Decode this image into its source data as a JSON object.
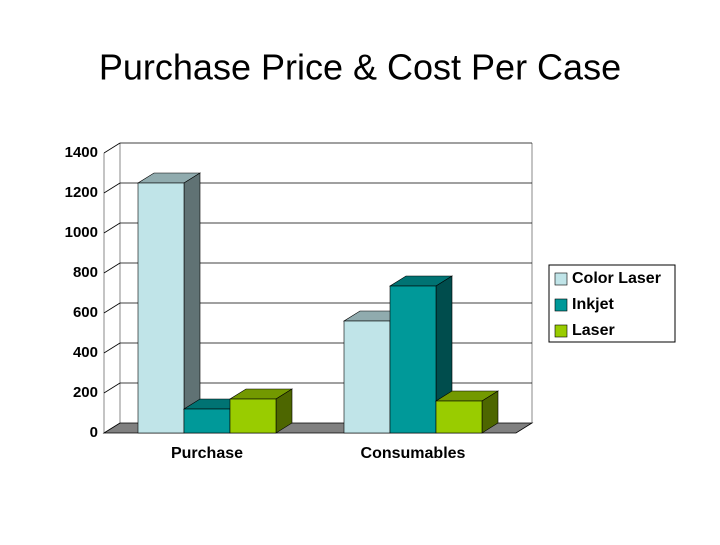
{
  "chart_data": {
    "type": "bar3d",
    "title": "Purchase Price & Cost Per Case",
    "categories": [
      "Purchase",
      "Consumables"
    ],
    "series": [
      {
        "name": "Color Laser",
        "color": "#c0e4e8",
        "values": [
          1250,
          560
        ]
      },
      {
        "name": "Inkjet",
        "color": "#009999",
        "values": [
          120,
          735
        ]
      },
      {
        "name": "Laser",
        "color": "#99cc00",
        "values": [
          170,
          160
        ]
      }
    ],
    "ylim": [
      0,
      1400
    ],
    "yticks": [
      0,
      200,
      400,
      600,
      800,
      1000,
      1200,
      1400
    ],
    "grid": true,
    "legend": "right"
  }
}
